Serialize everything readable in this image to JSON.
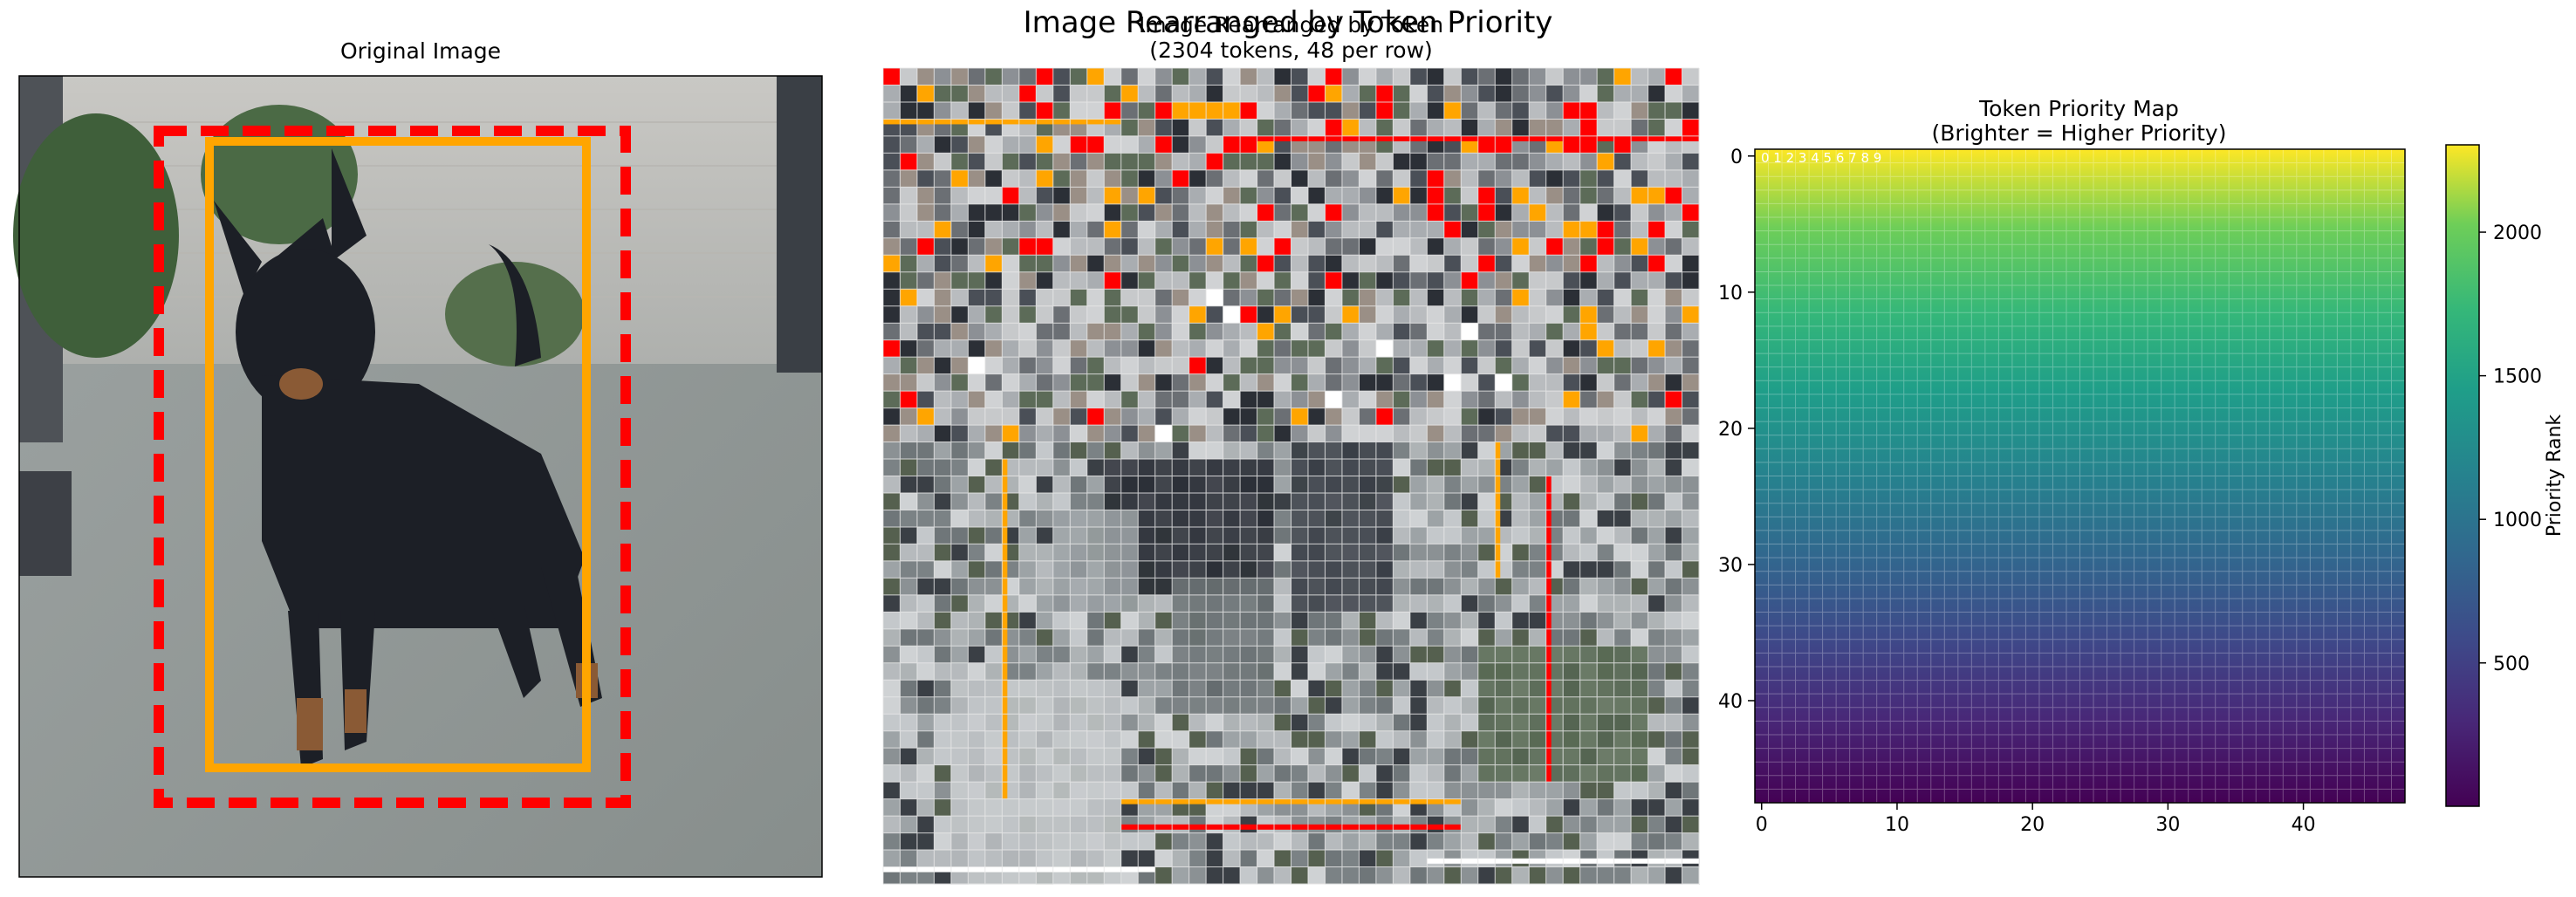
{
  "figure_title": "Image Rearranged by Token Priority",
  "panels": {
    "original": {
      "title": "Original Image",
      "boxes": [
        {
          "name": "red-dashed-box",
          "color": "#ff0000",
          "style": "dashed"
        },
        {
          "name": "orange-solid-box",
          "color": "#ffa500",
          "style": "solid"
        }
      ]
    },
    "rearranged": {
      "title_line1": "Image Rearranged by Token",
      "title_line2": "(2304 tokens, 48 per row)"
    },
    "priority_map": {
      "title_line1": "Token Priority Map",
      "title_line2": "(Brighter = Higher Priority)",
      "corner_labels": "0 1 2 3 4 5 6 7 8 9"
    }
  },
  "chart_data": [
    {
      "type": "heatmap",
      "title": "Token Priority Map\n(Brighter = Higher Priority)",
      "grid": [
        48,
        48
      ],
      "x_ticks": [
        0,
        10,
        20,
        30,
        40
      ],
      "y_ticks": [
        0,
        10,
        20,
        30,
        40
      ],
      "xlim": [
        -0.5,
        47.5
      ],
      "ylim": [
        47.5,
        -0.5
      ],
      "colormap": "viridis",
      "gradient": "bottom-to-top",
      "value_range": [
        1,
        2304
      ],
      "colorbar": {
        "label": "Priority Rank",
        "ticks": [
          500,
          1000,
          1500,
          2000
        ],
        "range": [
          1,
          2304
        ]
      },
      "grid_lines": true
    }
  ]
}
